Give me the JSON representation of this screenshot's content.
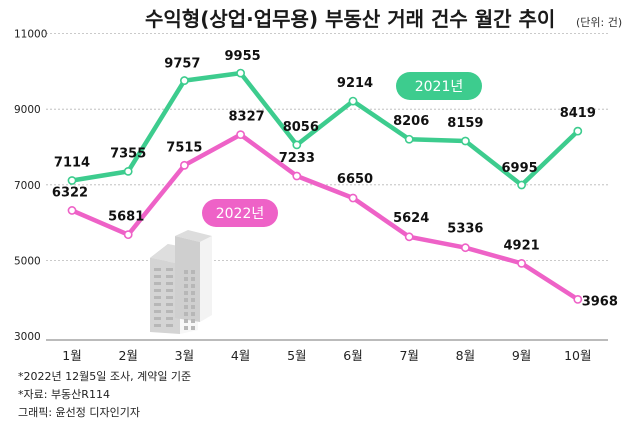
{
  "chart_data": {
    "type": "line",
    "title": "수익형(상업·업무용) 부동산 거래 건수 월간 추이",
    "unit_note": "(단위: 건)",
    "categories": [
      "1월",
      "2월",
      "3월",
      "4월",
      "5월",
      "6월",
      "7월",
      "8월",
      "9월",
      "10월"
    ],
    "yticks": [
      "11000",
      "9000",
      "7000",
      "5000",
      "3000"
    ],
    "ylim": [
      3000,
      11000
    ],
    "grid": true,
    "series": [
      {
        "name": "2021년",
        "color": "#3dcc8e",
        "values": [
          7114,
          7355,
          9757,
          9955,
          8056,
          9214,
          8206,
          8159,
          6995,
          8419
        ],
        "labels": [
          "7114",
          "7355",
          "9757",
          "9955",
          "8056",
          "9214",
          "8206",
          "8159",
          "6995",
          "8419"
        ]
      },
      {
        "name": "2022년",
        "color": "#ee62c7",
        "values": [
          6322,
          5681,
          7515,
          8327,
          7233,
          6650,
          5624,
          5336,
          4921,
          3968
        ],
        "labels": [
          "6322",
          "5681",
          "7515",
          "8327",
          "7233",
          "6650",
          "5624",
          "5336",
          "4921",
          "3968"
        ]
      }
    ]
  },
  "footnotes": {
    "note": "*2022년 12월5일 조사, 계약일 기준",
    "source": "*자료: 부동산R114",
    "graphic": "그래픽: 윤선정 디자인기자"
  },
  "colors": {
    "gridline": "#b8b8b8",
    "axis": "#777777",
    "building_light": "#f2f2f2",
    "building_dark": "#c8c8c8"
  }
}
